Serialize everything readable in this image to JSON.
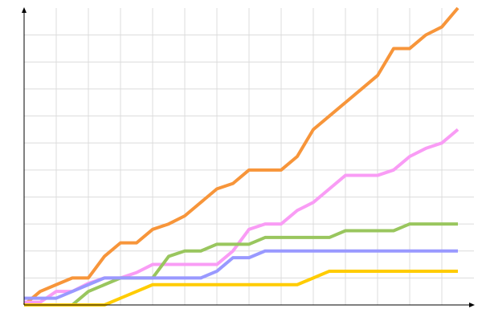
{
  "chart_data": {
    "type": "line",
    "x": [
      0,
      1,
      2,
      3,
      4,
      5,
      6,
      7,
      8,
      9,
      10,
      11,
      12,
      13,
      14,
      15,
      16,
      17,
      18,
      19,
      20,
      21,
      22,
      23,
      24,
      25,
      26,
      27
    ],
    "series": [
      {
        "color": "#f7953a",
        "values": [
          0,
          0.5,
          0.75,
          1,
          1,
          1.8,
          2.3,
          2.3,
          2.8,
          3,
          3.3,
          3.8,
          4.3,
          4.5,
          5,
          5,
          5,
          5.5,
          6.5,
          7,
          7.5,
          8,
          8.5,
          9.5,
          9.5,
          10,
          10.3,
          11
        ]
      },
      {
        "color": "#f99cf5",
        "values": [
          0.1,
          0.1,
          0.5,
          0.5,
          0.8,
          1,
          1,
          1.2,
          1.5,
          1.5,
          1.5,
          1.5,
          1.5,
          2,
          2.8,
          3,
          3,
          3.5,
          3.8,
          4.3,
          4.8,
          4.8,
          4.8,
          5,
          5.5,
          5.8,
          6,
          6.5
        ]
      },
      {
        "color": "#99c65e",
        "values": [
          0,
          0,
          0,
          0,
          0.5,
          0.75,
          1,
          1,
          1,
          1.8,
          2,
          2,
          2.25,
          2.25,
          2.25,
          2.5,
          2.5,
          2.5,
          2.5,
          2.5,
          2.75,
          2.75,
          2.75,
          2.75,
          3,
          3,
          3,
          3
        ]
      },
      {
        "color": "#9999ff",
        "values": [
          0.25,
          0.25,
          0.25,
          0.5,
          0.75,
          1,
          1,
          1,
          1,
          1,
          1,
          1,
          1.25,
          1.75,
          1.75,
          2,
          2,
          2,
          2,
          2,
          2,
          2,
          2,
          2,
          2,
          2,
          2,
          2
        ]
      },
      {
        "color": "#ffcc00",
        "values": [
          0,
          0,
          0,
          0,
          0,
          0,
          0.25,
          0.5,
          0.75,
          0.75,
          0.75,
          0.75,
          0.75,
          0.75,
          0.75,
          0.75,
          0.75,
          0.75,
          1,
          1.25,
          1.25,
          1.25,
          1.25,
          1.25,
          1.25,
          1.25,
          1.25,
          1.25
        ]
      }
    ],
    "xlim": [
      0,
      28
    ],
    "ylim": [
      0,
      11
    ],
    "xticks": [
      2,
      4,
      6,
      8,
      10,
      12,
      14,
      16,
      18,
      20,
      22,
      24,
      26
    ],
    "yticks": [
      1,
      2,
      3,
      4,
      5,
      6,
      7,
      8,
      9,
      10
    ],
    "grid": true
  }
}
